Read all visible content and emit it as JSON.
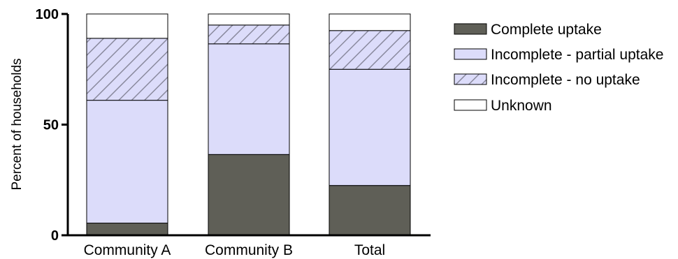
{
  "chart_data": {
    "type": "bar",
    "stacked": true,
    "categories": [
      "Community A",
      "Community B",
      "Total"
    ],
    "series": [
      {
        "name": "Complete uptake",
        "values": [
          5.5,
          36.5,
          22.5
        ],
        "color": "#5f5f57",
        "pattern": "solid"
      },
      {
        "name": "Incomplete - partial uptake",
        "values": [
          55.5,
          50,
          52.5
        ],
        "color": "#dcdcfa",
        "pattern": "solid"
      },
      {
        "name": "Incomplete - no uptake",
        "values": [
          28,
          8.5,
          17.5
        ],
        "color": "#dcdcfa",
        "pattern": "diagonal-hatch"
      },
      {
        "name": "Unknown",
        "values": [
          11,
          5,
          7.5
        ],
        "color": "#ffffff",
        "pattern": "solid"
      }
    ],
    "ylabel": "Percent of households",
    "xlabel": "",
    "ylim": [
      0,
      100
    ],
    "yticks": [
      "0",
      "50",
      "100"
    ],
    "grid": false,
    "legend_position": "right"
  }
}
